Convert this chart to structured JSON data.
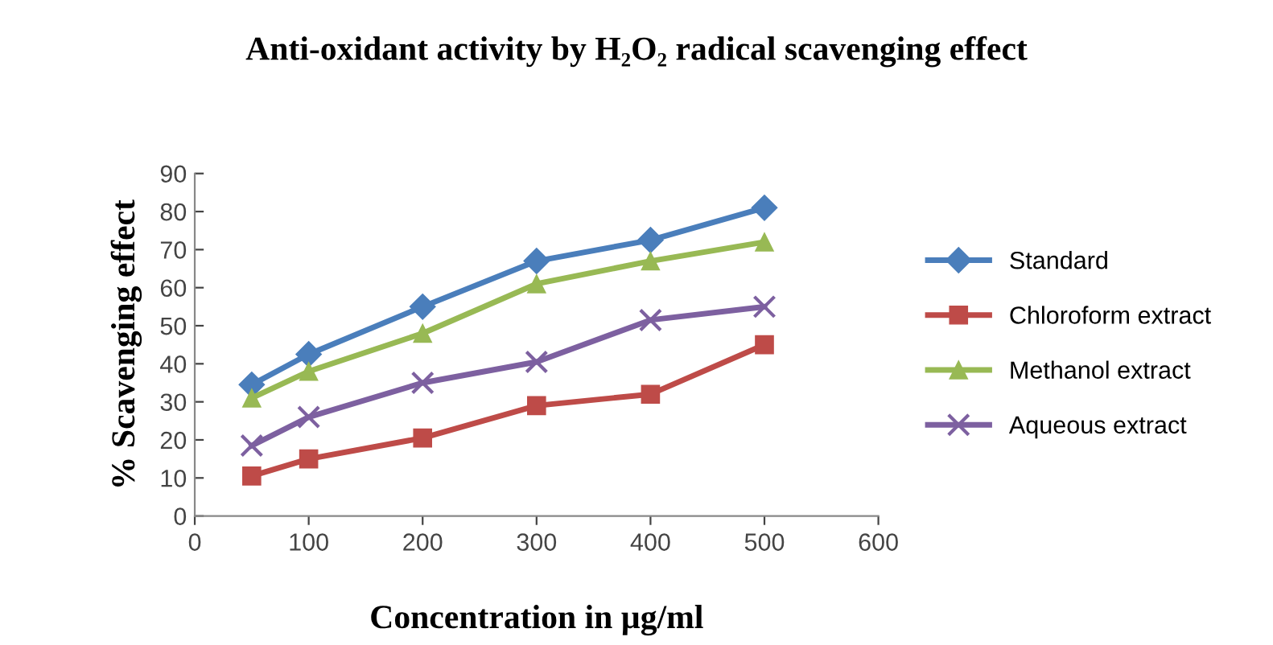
{
  "chart_data": {
    "type": "line",
    "title": "Anti-oxidant activity by H₂O₂ radical scavenging effect",
    "xlabel": "Concentration in µg/ml",
    "ylabel": "% Scavenging effect",
    "x": [
      50,
      100,
      200,
      300,
      400,
      500
    ],
    "series": [
      {
        "name": "Standard",
        "color": "#4a7ebb",
        "marker": "diamond",
        "values": [
          34.5,
          42.5,
          55,
          67,
          72.5,
          81
        ]
      },
      {
        "name": "Chloroform extract",
        "color": "#be4b48",
        "marker": "square",
        "values": [
          10.5,
          15,
          20.5,
          29,
          32,
          45
        ]
      },
      {
        "name": "Methanol extract",
        "color": "#98b954",
        "marker": "triangle",
        "values": [
          31,
          38,
          48,
          61,
          67,
          72
        ]
      },
      {
        "name": "Aqueous extract",
        "color": "#7d60a0",
        "marker": "cross",
        "values": [
          18.5,
          26,
          35,
          40.5,
          51.5,
          55
        ]
      }
    ],
    "xlim": [
      0,
      600
    ],
    "xticks": [
      0,
      100,
      200,
      300,
      400,
      500,
      600
    ],
    "ylim": [
      0,
      90
    ],
    "yticks": [
      0,
      10,
      20,
      30,
      40,
      50,
      60,
      70,
      80,
      90
    ],
    "grid": false,
    "legend": "right",
    "line_style": "solid"
  }
}
